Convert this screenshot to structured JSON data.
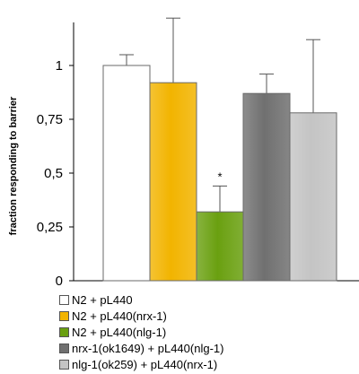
{
  "chart_data": {
    "type": "bar",
    "ylabel": "fraction responding to barrier",
    "ylim": [
      0,
      1.2
    ],
    "yticks": [
      "0",
      "0,25",
      "0,5",
      "0,75",
      "1"
    ],
    "ytick_values": [
      0,
      0.25,
      0.5,
      0.75,
      1
    ],
    "grid": false,
    "legend_position": "bottom",
    "series": [
      {
        "name": "N2 + pL440",
        "value": 1.0,
        "error": 0.05,
        "color": "#ffffff",
        "annotation": ""
      },
      {
        "name": "N2 + pL440(nrx-1)",
        "value": 0.92,
        "error": 0.3,
        "color": "#f2b400",
        "annotation": ""
      },
      {
        "name": "N2 + pL440(nlg-1)",
        "value": 0.32,
        "error": 0.12,
        "color": "#6aa010",
        "annotation": "*"
      },
      {
        "name": "nrx-1(ok1649) + pL440(nlg-1)",
        "value": 0.87,
        "error": 0.09,
        "color": "#707070",
        "annotation": ""
      },
      {
        "name": "nlg-1(ok259) + pL440(nrx-1)",
        "value": 0.78,
        "error": 0.34,
        "color": "#c4c4c4",
        "annotation": ""
      }
    ]
  }
}
